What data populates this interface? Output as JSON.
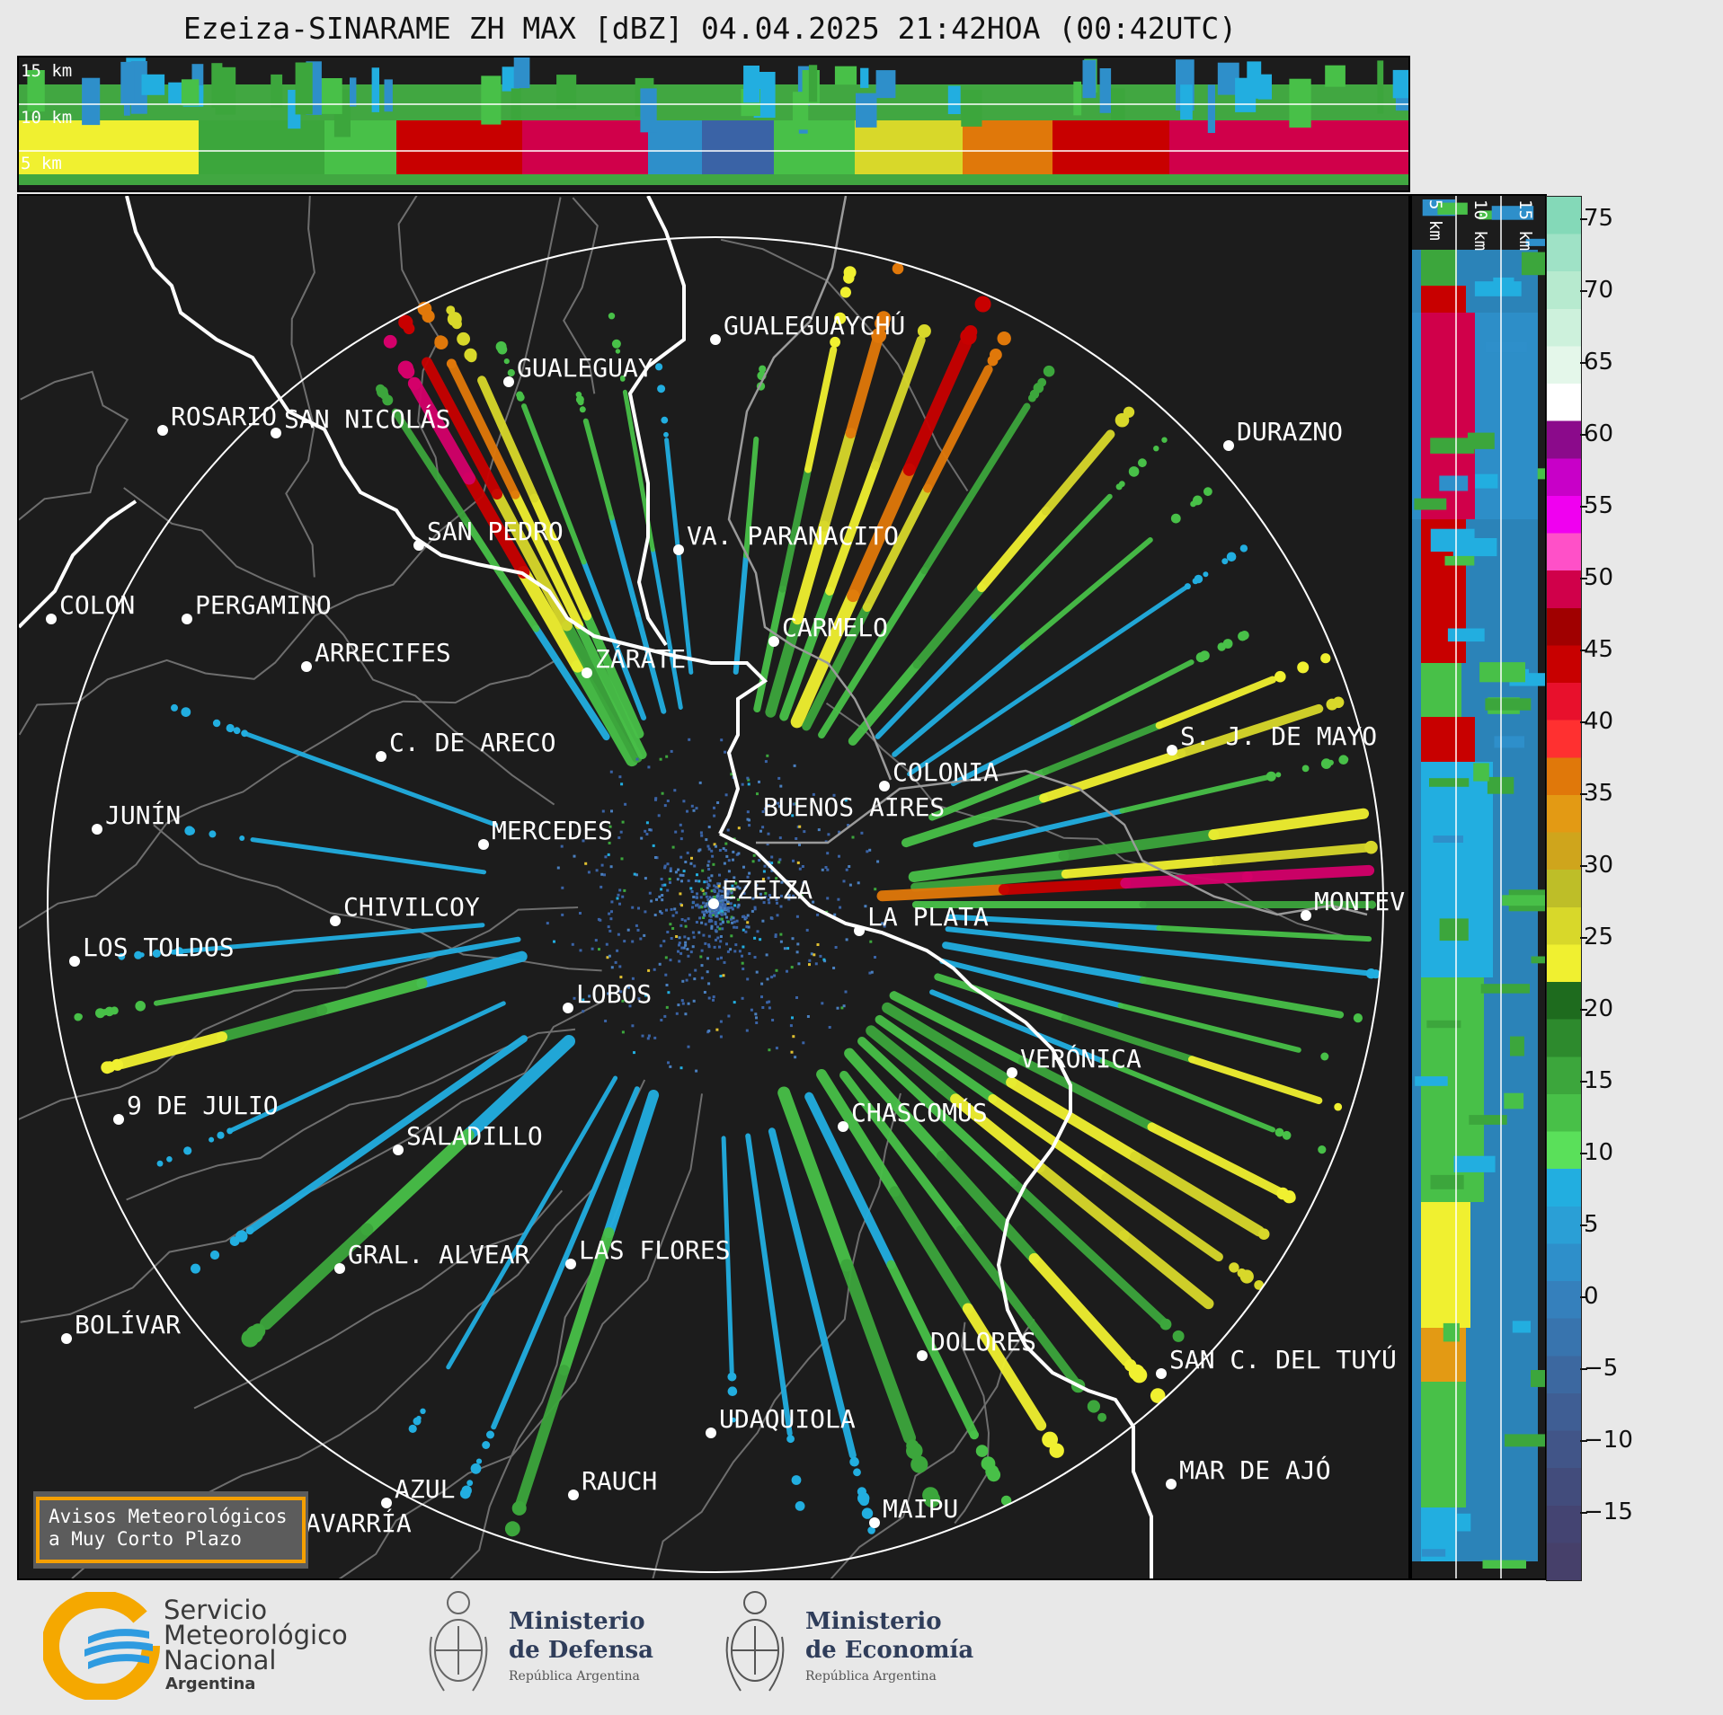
{
  "title": "Ezeiza-SINARAME ZH MAX [dBZ] 04.04.2025 21:42HOA (00:42UTC)",
  "height_labels_top": [
    "15 km",
    "10 km",
    "5 km"
  ],
  "height_labels_side": [
    "5 km",
    "10 km",
    "15 km"
  ],
  "colorbar": {
    "ticks": [
      "75",
      "70",
      "65",
      "60",
      "55",
      "50",
      "45",
      "40",
      "35",
      "30",
      "25",
      "20",
      "15",
      "10",
      "5",
      "0",
      "−5",
      "−10",
      "−15"
    ]
  },
  "cities": [
    {
      "name": "ROSARIO"
    },
    {
      "name": "GUALEGUAYCHÚ"
    },
    {
      "name": "GUALEGUAY"
    },
    {
      "name": "SAN NICOLÁS"
    },
    {
      "name": "DURAZNO"
    },
    {
      "name": "SAN PEDRO"
    },
    {
      "name": "VA. PARANACITO"
    },
    {
      "name": "COLON"
    },
    {
      "name": "PERGAMINO"
    },
    {
      "name": "CARMELO"
    },
    {
      "name": "ARRECIFES"
    },
    {
      "name": "ZÁRATE"
    },
    {
      "name": "S. J. DE MAYO"
    },
    {
      "name": "C. DE ARECO"
    },
    {
      "name": "COLONIA"
    },
    {
      "name": "JUNÍN"
    },
    {
      "name": "BUENOS AIRES"
    },
    {
      "name": "MERCEDES"
    },
    {
      "name": "EZEIZA"
    },
    {
      "name": "MONTEV"
    },
    {
      "name": "CHIVILCOY"
    },
    {
      "name": "LA PLATA"
    },
    {
      "name": "LOS TOLDOS"
    },
    {
      "name": "LOBOS"
    },
    {
      "name": "VERÓNICA"
    },
    {
      "name": "9 DE JULIO"
    },
    {
      "name": "CHASCOMÚS"
    },
    {
      "name": "SALADILLO"
    },
    {
      "name": "GRAL. ALVEAR"
    },
    {
      "name": "LAS FLORES"
    },
    {
      "name": "BOLÍVAR"
    },
    {
      "name": "DOLORES"
    },
    {
      "name": "SAN C. DEL TUYÚ"
    },
    {
      "name": "UDAQUIOLA"
    },
    {
      "name": "AZUL"
    },
    {
      "name": "RAUCH"
    },
    {
      "name": "MAR DE AJÓ"
    },
    {
      "name": "MAIPU"
    },
    {
      "name": "OLAVARRÍA"
    }
  ],
  "avisos": {
    "line1": "Avisos Meteorológicos",
    "line2": "a Muy Corto Plazo"
  },
  "logos": {
    "smn": {
      "line1": "Servicio",
      "line2": "Meteorológico",
      "line3": "Nacional",
      "line4": "Argentina"
    },
    "defensa": {
      "line1": "Ministerio",
      "line2": "de Defensa",
      "line3": "República Argentina"
    },
    "economia": {
      "line1": "Ministerio",
      "line2": "de Economía",
      "line3": "República Argentina"
    }
  }
}
